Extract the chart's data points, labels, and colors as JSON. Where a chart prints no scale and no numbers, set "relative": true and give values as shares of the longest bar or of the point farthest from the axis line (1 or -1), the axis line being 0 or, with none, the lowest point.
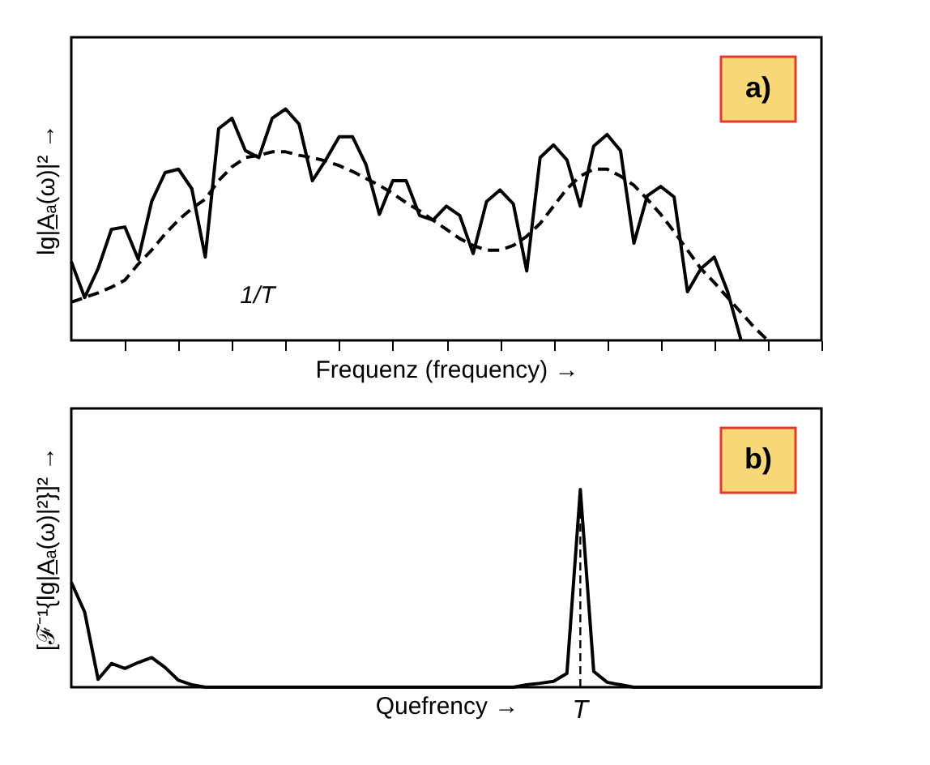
{
  "chart_data": [
    {
      "type": "line",
      "relative": true,
      "ylabel": "lg|A̲ₐ(ω)|² →",
      "xlabel": "Frequenz (frequency) →",
      "annotations": [
        "a)",
        "1/T"
      ],
      "tick_labels": false,
      "categories": [
        null,
        null,
        null,
        null,
        null,
        null,
        null,
        null,
        null,
        null,
        null,
        null,
        null,
        null,
        null,
        null,
        null,
        null,
        null,
        null,
        null,
        null,
        null,
        null,
        null,
        null,
        null,
        null,
        null,
        null,
        null,
        null,
        null,
        null,
        null,
        null,
        null,
        null,
        null,
        null,
        null,
        null,
        null,
        null,
        null,
        null,
        null,
        null,
        null,
        null,
        null,
        null,
        null,
        null,
        null,
        null,
        null
      ],
      "series": [
        {
          "color": "#000000",
          "line_style": "solid",
          "values": [
            0.34,
            0.185,
            0.31,
            0.48,
            0.49,
            0.35,
            0.6,
            0.725,
            0.74,
            0.655,
            0.36,
            0.915,
            0.96,
            0.82,
            0.79,
            0.96,
            1.0,
            0.935,
            0.69,
            0.78,
            0.88,
            0.88,
            0.76,
            0.545,
            0.69,
            0.69,
            0.54,
            0.52,
            0.58,
            0.54,
            0.375,
            0.6,
            0.65,
            0.59,
            0.3,
            0.79,
            0.845,
            0.78,
            0.58,
            0.84,
            0.89,
            0.82,
            0.42,
            0.625,
            0.665,
            0.62,
            0.21,
            0.31,
            0.36,
            0.21,
            0,
            null,
            null,
            null,
            null,
            null,
            null
          ]
        },
        {
          "color": "#000000",
          "line_style": "dashed",
          "values": [
            0.165,
            0.185,
            0.205,
            0.23,
            0.26,
            0.33,
            0.39,
            0.46,
            0.52,
            0.57,
            0.61,
            0.69,
            0.75,
            0.79,
            0.8,
            0.815,
            0.815,
            0.8,
            0.79,
            0.775,
            0.755,
            0.73,
            0.7,
            0.67,
            0.635,
            0.595,
            0.56,
            0.52,
            0.48,
            0.44,
            0.41,
            0.39,
            0.39,
            0.41,
            0.45,
            0.505,
            0.58,
            0.655,
            0.71,
            0.74,
            0.74,
            0.71,
            0.67,
            0.61,
            0.545,
            0.47,
            0.39,
            0.31,
            0.25,
            0.185,
            0.12,
            0.055,
            0,
            null,
            null,
            null,
            null
          ]
        }
      ]
    },
    {
      "type": "line",
      "relative": true,
      "ylabel": "[ℱ⁻¹{lg|A̲ₐ(ω)|²}]² →",
      "xlabel": "Quefrency →",
      "annotations": [
        "b)",
        "T"
      ],
      "tick_labels": false,
      "categories": [
        null,
        null,
        null,
        null,
        null,
        null,
        null,
        null,
        null,
        null,
        null,
        null,
        null,
        null,
        null,
        null,
        null,
        null,
        null,
        null,
        null,
        null,
        null,
        null,
        null,
        null,
        null,
        null,
        null,
        null,
        null,
        null,
        null,
        null,
        null,
        null,
        null,
        null,
        null,
        null,
        null,
        null,
        null,
        null,
        null,
        null,
        null,
        null,
        null,
        null,
        null,
        null,
        null,
        null,
        null,
        null,
        null
      ],
      "series": [
        {
          "color": "#000000",
          "line_style": "solid",
          "values": [
            0.53,
            0.38,
            0.04,
            0.12,
            0.095,
            0.125,
            0.15,
            0.1,
            0.035,
            0.012,
            0,
            0,
            0,
            0,
            0,
            0,
            0,
            0,
            0,
            0,
            0,
            0,
            0,
            0,
            0,
            0,
            0,
            0,
            0,
            0,
            0,
            0,
            0,
            0,
            0.012,
            0.02,
            0.03,
            0.07,
            1.0,
            0.08,
            0.025,
            0.012,
            0,
            0,
            0,
            0,
            0,
            0,
            0,
            0,
            0,
            0,
            0,
            0,
            0,
            0,
            0
          ]
        }
      ]
    }
  ]
}
